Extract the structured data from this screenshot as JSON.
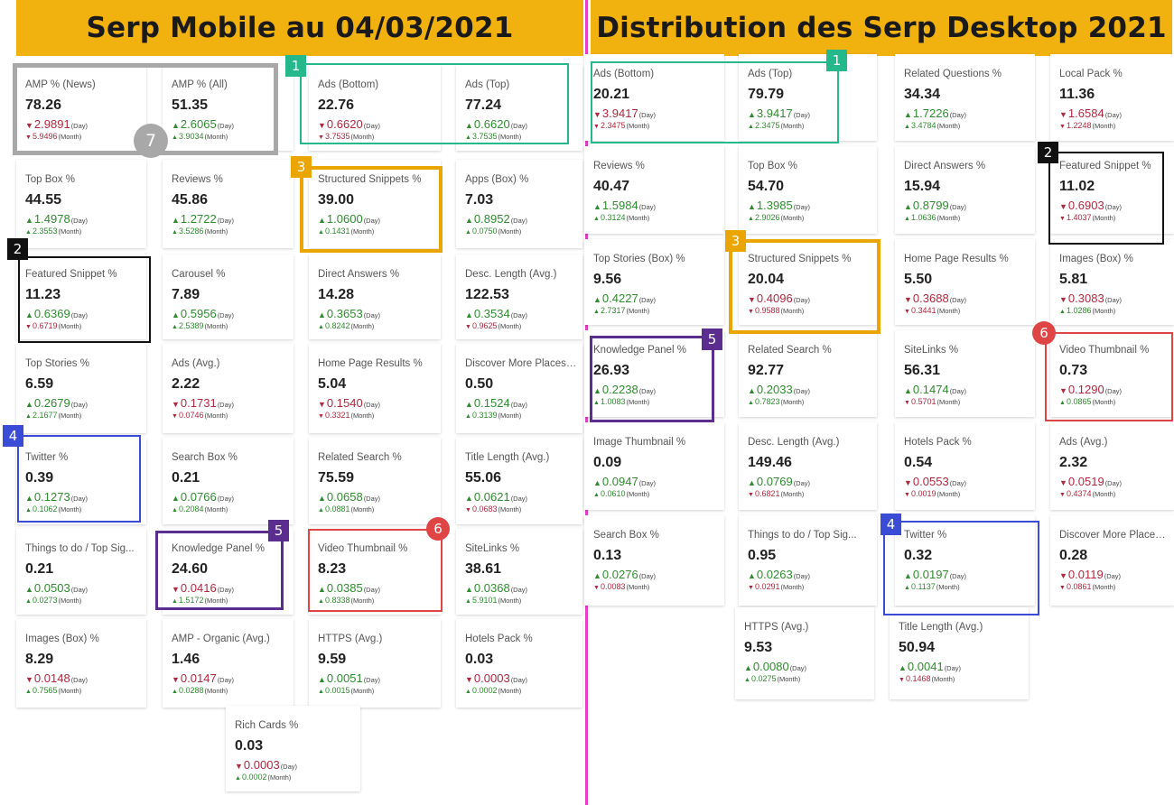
{
  "left_title": "Serp Mobile au 04/03/2021",
  "right_title": "Distribution des Serp Desktop 2021",
  "unit_day": "(Day)",
  "unit_month": "(Month)",
  "colors": {
    "banner": "#f1b20f",
    "divider": "#e43fc6",
    "up": "#2e8b2e",
    "down": "#b0283e",
    "hl1": "#24b88a",
    "hl2": "#111111",
    "hl3": "#eaa500",
    "hl4": "#3a4bd6",
    "hl5": "#5b2d8e",
    "hl6": "#e04545",
    "hl7": "#a8a8a8"
  },
  "badges": [
    "1",
    "2",
    "3",
    "4",
    "5",
    "6",
    "7"
  ],
  "mobile": [
    {
      "label": "AMP % (News)",
      "value": "78.26",
      "day": "2.9891",
      "day_dir": "down",
      "month": "5.9496",
      "month_dir": "down"
    },
    {
      "label": "AMP % (All)",
      "value": "51.35",
      "day": "2.6065",
      "day_dir": "up",
      "month": "3.9034",
      "month_dir": "up"
    },
    {
      "label": "Ads (Bottom)",
      "value": "22.76",
      "day": "0.6620",
      "day_dir": "down",
      "month": "3.7535",
      "month_dir": "down"
    },
    {
      "label": "Ads (Top)",
      "value": "77.24",
      "day": "0.6620",
      "day_dir": "up",
      "month": "3.7535",
      "month_dir": "up"
    },
    {
      "label": "Top Box %",
      "value": "44.55",
      "day": "1.4978",
      "day_dir": "up",
      "month": "2.3553",
      "month_dir": "up"
    },
    {
      "label": "Reviews %",
      "value": "45.86",
      "day": "1.2722",
      "day_dir": "up",
      "month": "3.5286",
      "month_dir": "up"
    },
    {
      "label": "Structured Snippets %",
      "value": "39.00",
      "day": "1.0600",
      "day_dir": "up",
      "month": "0.1431",
      "month_dir": "up"
    },
    {
      "label": "Apps (Box) %",
      "value": "7.03",
      "day": "0.8952",
      "day_dir": "up",
      "month": "0.0750",
      "month_dir": "up"
    },
    {
      "label": "Featured Snippet %",
      "value": "11.23",
      "day": "0.6369",
      "day_dir": "up",
      "month": "0.6719",
      "month_dir": "down"
    },
    {
      "label": "Carousel %",
      "value": "7.89",
      "day": "0.5956",
      "day_dir": "up",
      "month": "2.5389",
      "month_dir": "up"
    },
    {
      "label": "Direct Answers %",
      "value": "14.28",
      "day": "0.3653",
      "day_dir": "up",
      "month": "0.8242",
      "month_dir": "up"
    },
    {
      "label": "Desc. Length (Avg.)",
      "value": "122.53",
      "day": "0.3534",
      "day_dir": "up",
      "month": "0.9625",
      "month_dir": "down"
    },
    {
      "label": "Top Stories %",
      "value": "6.59",
      "day": "0.2679",
      "day_dir": "up",
      "month": "2.1677",
      "month_dir": "up"
    },
    {
      "label": "Ads (Avg.)",
      "value": "2.22",
      "day": "0.1731",
      "day_dir": "down",
      "month": "0.0746",
      "month_dir": "down"
    },
    {
      "label": "Home Page Results %",
      "value": "5.04",
      "day": "0.1540",
      "day_dir": "down",
      "month": "0.3321",
      "month_dir": "down"
    },
    {
      "label": "Discover More Places ...",
      "value": "0.50",
      "day": "0.1524",
      "day_dir": "up",
      "month": "0.3139",
      "month_dir": "up"
    },
    {
      "label": "Twitter %",
      "value": "0.39",
      "day": "0.1273",
      "day_dir": "up",
      "month": "0.1062",
      "month_dir": "up"
    },
    {
      "label": "Search Box %",
      "value": "0.21",
      "day": "0.0766",
      "day_dir": "up",
      "month": "0.2084",
      "month_dir": "up"
    },
    {
      "label": "Related Search %",
      "value": "75.59",
      "day": "0.0658",
      "day_dir": "up",
      "month": "0.0881",
      "month_dir": "up"
    },
    {
      "label": "Title Length (Avg.)",
      "value": "55.06",
      "day": "0.0621",
      "day_dir": "up",
      "month": "0.0683",
      "month_dir": "down"
    },
    {
      "label": "Things to do / Top Sig...",
      "value": "0.21",
      "day": "0.0503",
      "day_dir": "up",
      "month": "0.0273",
      "month_dir": "up"
    },
    {
      "label": "Knowledge Panel %",
      "value": "24.60",
      "day": "0.0416",
      "day_dir": "down",
      "month": "1.5172",
      "month_dir": "up"
    },
    {
      "label": "Video Thumbnail %",
      "value": "8.23",
      "day": "0.0385",
      "day_dir": "up",
      "month": "0.8338",
      "month_dir": "up"
    },
    {
      "label": "SiteLinks %",
      "value": "38.61",
      "day": "0.0368",
      "day_dir": "up",
      "month": "5.9101",
      "month_dir": "up"
    },
    {
      "label": "Images (Box) %",
      "value": "8.29",
      "day": "0.0148",
      "day_dir": "down",
      "month": "0.7565",
      "month_dir": "up"
    },
    {
      "label": "AMP - Organic (Avg.)",
      "value": "1.46",
      "day": "0.0147",
      "day_dir": "down",
      "month": "0.0288",
      "month_dir": "up"
    },
    {
      "label": "HTTPS (Avg.)",
      "value": "9.59",
      "day": "0.0051",
      "day_dir": "up",
      "month": "0.0015",
      "month_dir": "up"
    },
    {
      "label": "Hotels Pack %",
      "value": "0.03",
      "day": "0.0003",
      "day_dir": "down",
      "month": "0.0002",
      "month_dir": "up"
    },
    {
      "label": "Rich Cards %",
      "value": "0.03",
      "day": "0.0003",
      "day_dir": "down",
      "month": "0.0002",
      "month_dir": "up"
    }
  ],
  "desktop": [
    {
      "label": "Ads (Bottom)",
      "value": "20.21",
      "day": "3.9417",
      "day_dir": "down",
      "month": "2.3475",
      "month_dir": "down"
    },
    {
      "label": "Ads (Top)",
      "value": "79.79",
      "day": "3.9417",
      "day_dir": "up",
      "month": "2.3475",
      "month_dir": "up"
    },
    {
      "label": "Related Questions %",
      "value": "34.34",
      "day": "1.7226",
      "day_dir": "up",
      "month": "3.4784",
      "month_dir": "up"
    },
    {
      "label": "Local Pack %",
      "value": "11.36",
      "day": "1.6584",
      "day_dir": "down",
      "month": "1.2248",
      "month_dir": "down"
    },
    {
      "label": "Reviews %",
      "value": "40.47",
      "day": "1.5984",
      "day_dir": "up",
      "month": "0.3124",
      "month_dir": "up"
    },
    {
      "label": "Top Box %",
      "value": "54.70",
      "day": "1.3985",
      "day_dir": "up",
      "month": "2.9026",
      "month_dir": "up"
    },
    {
      "label": "Direct Answers %",
      "value": "15.94",
      "day": "0.8799",
      "day_dir": "up",
      "month": "1.0636",
      "month_dir": "up"
    },
    {
      "label": "Featured Snippet %",
      "value": "11.02",
      "day": "0.6903",
      "day_dir": "down",
      "month": "1.4037",
      "month_dir": "down"
    },
    {
      "label": "Top Stories (Box) %",
      "value": "9.56",
      "day": "0.4227",
      "day_dir": "up",
      "month": "2.7317",
      "month_dir": "up"
    },
    {
      "label": "Structured Snippets %",
      "value": "20.04",
      "day": "0.4096",
      "day_dir": "down",
      "month": "0.9588",
      "month_dir": "down"
    },
    {
      "label": "Home Page Results %",
      "value": "5.50",
      "day": "0.3688",
      "day_dir": "down",
      "month": "0.3441",
      "month_dir": "down"
    },
    {
      "label": "Images (Box) %",
      "value": "5.81",
      "day": "0.3083",
      "day_dir": "down",
      "month": "1.0286",
      "month_dir": "up"
    },
    {
      "label": "Knowledge Panel %",
      "value": "26.93",
      "day": "0.2238",
      "day_dir": "up",
      "month": "1.0083",
      "month_dir": "up"
    },
    {
      "label": "Related Search %",
      "value": "92.77",
      "day": "0.2033",
      "day_dir": "up",
      "month": "0.7823",
      "month_dir": "up"
    },
    {
      "label": "SiteLinks %",
      "value": "56.31",
      "day": "0.1474",
      "day_dir": "up",
      "month": "0.5701",
      "month_dir": "down"
    },
    {
      "label": "Video Thumbnail %",
      "value": "0.73",
      "day": "0.1290",
      "day_dir": "down",
      "month": "0.0865",
      "month_dir": "up"
    },
    {
      "label": "Image Thumbnail %",
      "value": "0.09",
      "day": "0.0947",
      "day_dir": "up",
      "month": "0.0610",
      "month_dir": "up"
    },
    {
      "label": "Desc. Length (Avg.)",
      "value": "149.46",
      "day": "0.0769",
      "day_dir": "up",
      "month": "0.6821",
      "month_dir": "down"
    },
    {
      "label": "Hotels Pack %",
      "value": "0.54",
      "day": "0.0553",
      "day_dir": "down",
      "month": "0.0019",
      "month_dir": "down"
    },
    {
      "label": "Ads (Avg.)",
      "value": "2.32",
      "day": "0.0519",
      "day_dir": "down",
      "month": "0.4374",
      "month_dir": "down"
    },
    {
      "label": "Search Box %",
      "value": "0.13",
      "day": "0.0276",
      "day_dir": "up",
      "month": "0.0083",
      "month_dir": "down"
    },
    {
      "label": "Things to do / Top Sig...",
      "value": "0.95",
      "day": "0.0263",
      "day_dir": "up",
      "month": "0.0291",
      "month_dir": "down"
    },
    {
      "label": "Twitter %",
      "value": "0.32",
      "day": "0.0197",
      "day_dir": "up",
      "month": "0.1137",
      "month_dir": "up"
    },
    {
      "label": "Discover More Places ...",
      "value": "0.28",
      "day": "0.0119",
      "day_dir": "down",
      "month": "0.0861",
      "month_dir": "down"
    },
    {
      "label": "HTTPS (Avg.)",
      "value": "9.53",
      "day": "0.0080",
      "day_dir": "up",
      "month": "0.0275",
      "month_dir": "up"
    },
    {
      "label": "Title Length (Avg.)",
      "value": "50.94",
      "day": "0.0041",
      "day_dir": "up",
      "month": "0.1468",
      "month_dir": "down"
    }
  ]
}
